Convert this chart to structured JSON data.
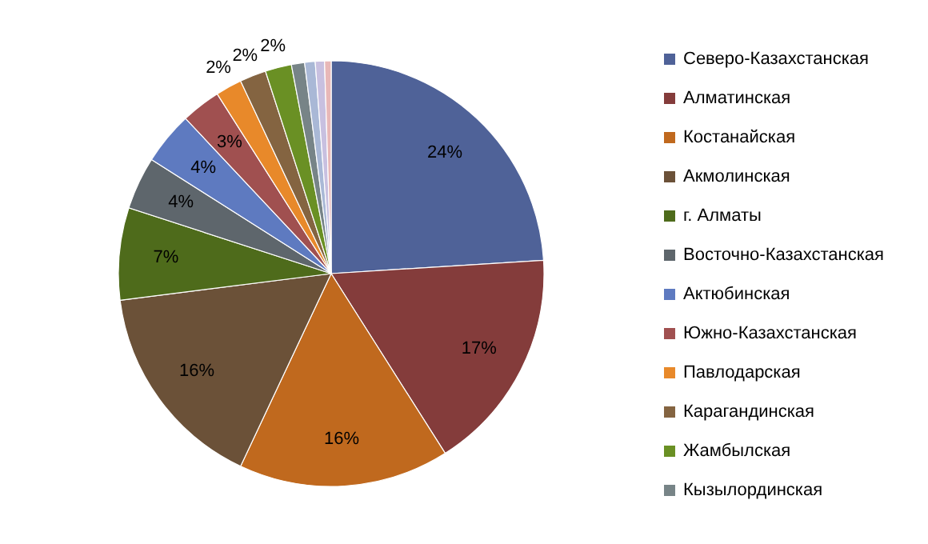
{
  "chart_data": {
    "type": "pie",
    "categories": [
      "Северо-Казахстанская",
      "Алматинская",
      "Костанайская",
      "Акмолинская",
      "г. Алматы",
      "Восточно-Казахстанская",
      "Актюбинская",
      "Южно-Казахстанская",
      "Павлодарская",
      "Карагандинская",
      "Жамбылская",
      "Кызылординская",
      null,
      null,
      null
    ],
    "values": [
      24,
      17,
      16,
      16,
      7,
      4,
      4,
      3,
      2,
      2,
      2,
      1,
      0.8,
      0.7,
      0.5
    ],
    "value_labels": [
      "24%",
      "17%",
      "16%",
      "16%",
      "7%",
      "4%",
      "4%",
      "3%",
      "2%",
      "2%",
      "2%",
      null,
      null,
      null,
      null
    ],
    "colors": [
      "#4f6298",
      "#843c3b",
      "#c0691e",
      "#6b5138",
      "#4e6b1b",
      "#5e666c",
      "#5e7ac0",
      "#a05050",
      "#e8892a",
      "#846441",
      "#6a9024",
      "#778487",
      "#a9b8d6",
      "#c8c0e0",
      "#e8b8b8"
    ],
    "legend": "right"
  }
}
